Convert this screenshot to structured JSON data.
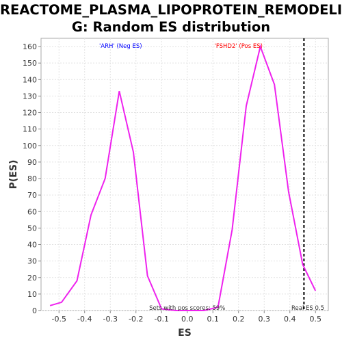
{
  "chart_data": {
    "type": "line",
    "title_lines": [
      "REACTOME_PLASMA_LIPOPROTEIN_REMODELIN",
      "G: Random ES distribution"
    ],
    "xlabel": "ES",
    "ylabel": "P(ES)",
    "xlim": [
      -0.57,
      0.55
    ],
    "ylim": [
      0,
      165
    ],
    "x_ticks": [
      -0.5,
      -0.4,
      -0.3,
      -0.2,
      -0.1,
      0.0,
      0.1,
      0.2,
      0.3,
      0.4,
      0.5
    ],
    "y_ticks": [
      0,
      10,
      20,
      30,
      40,
      50,
      60,
      70,
      80,
      90,
      100,
      110,
      120,
      130,
      140,
      150,
      160
    ],
    "grid": true,
    "series": [
      {
        "color": "#ee22ee",
        "x": [
          -0.535,
          -0.49,
          -0.43,
          -0.375,
          -0.32,
          -0.265,
          -0.21,
          -0.155,
          -0.1,
          -0.045,
          0.01,
          0.065,
          0.12,
          0.175,
          0.23,
          0.285,
          0.34,
          0.395,
          0.45,
          0.5
        ],
        "y": [
          3,
          5,
          18,
          58,
          80,
          133,
          96,
          21,
          1,
          0,
          0,
          0,
          2,
          49,
          124,
          160,
          137,
          72,
          28,
          12
        ]
      }
    ],
    "real_es": {
      "x": 0.455,
      "color": "#000000",
      "label": "Real ES 0.5"
    },
    "annotations": {
      "neg_label": "'ARH' (Neg ES)",
      "neg_color": "#0000ff",
      "pos_label": "'FSHD2' (Pos ES)",
      "pos_color": "#ff0000",
      "footer": "Sets with pos scores: 59%"
    }
  }
}
